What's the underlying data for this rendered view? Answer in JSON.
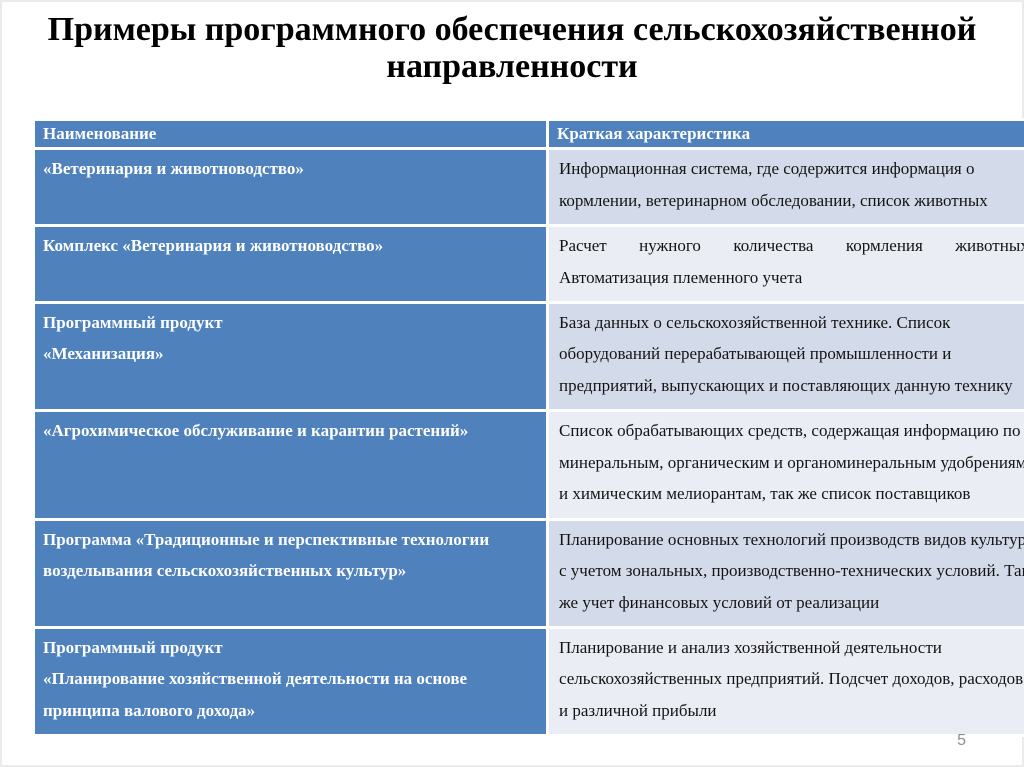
{
  "slide": {
    "title": "Примеры программного обеспечения сельскохозяйственной направленности",
    "page_number": "5"
  },
  "table": {
    "headers": {
      "name": "Наименование",
      "description": "Краткая характеристика"
    },
    "rows": [
      {
        "name": "«Ветеринария и животноводство»",
        "description": "Информационная система, где содержится информация о кормлении, ветеринарном обследовании, список животных"
      },
      {
        "name": "Комплекс «Ветеринария и животноводство»",
        "description": "Расчет нужного количества кормления животных. Автоматизация племенного учета"
      },
      {
        "name": "Программный продукт\n«Механизация»",
        "description": "База данных о сельскохозяйственной технике. Список оборудований перерабатывающей промышленности и предприятий, выпускающих и поставляющих данную технику"
      },
      {
        "name": "«Агрохимическое обслуживание и карантин растений»",
        "description": "Список обрабатывающих средств, содержащая информацию по минеральным, органическим и органоминеральным удобрениям и химическим мелиорантам, так же список поставщиков"
      },
      {
        "name": "Программа «Традиционные и перспективные технологии возделывания сельскохозяйственных культур»",
        "description": "Планирование основных технологий производств видов культур с учетом зональных, производственно-технических условий. Так же учет финансовых условий от реализации"
      },
      {
        "name": "Программный продукт\n«Планирование хозяйственной деятельности на основе принципа валового дохода»",
        "description": "Планирование и анализ хозяйственной деятельности сельскохозяйственных предприятий. Подсчет доходов, расходов и различной прибыли"
      }
    ]
  },
  "colors": {
    "table_accent_blue": "#4f81bd",
    "band_dark": "#d3dae9",
    "band_light": "#eaedf4",
    "page_number_gray": "#8f8f8f"
  }
}
